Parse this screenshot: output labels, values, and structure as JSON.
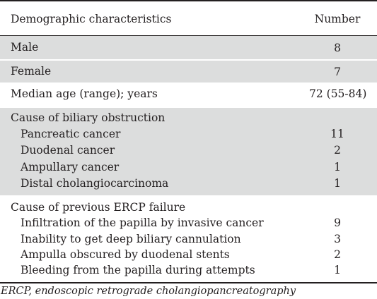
{
  "header": {
    "characteristic": "Demographic characteristics",
    "number": "Number"
  },
  "rows": [
    {
      "label": "Male",
      "value": "8"
    },
    {
      "label": "Female",
      "value": "7"
    },
    {
      "label": "Median age (range); years",
      "value": "72 (55-84)"
    }
  ],
  "biliary": {
    "heading": "Cause of biliary obstruction",
    "items": [
      {
        "label": "Pancreatic cancer",
        "value": "11"
      },
      {
        "label": "Duodenal cancer",
        "value": "2"
      },
      {
        "label": "Ampullary cancer",
        "value": "1"
      },
      {
        "label": "Distal cholangiocarcinoma",
        "value": "1"
      }
    ]
  },
  "ercp": {
    "heading": "Cause of previous ERCP failure",
    "items": [
      {
        "label": "Infiltration of the papilla by invasive cancer",
        "value": "9"
      },
      {
        "label": "Inability to get deep biliary cannulation",
        "value": "3"
      },
      {
        "label": "Ampulla obscured by duodenal stents",
        "value": "2"
      },
      {
        "label": "Bleeding from the papilla during attempts",
        "value": "1"
      }
    ]
  },
  "footnote": "ERCP, endoscopic retrograde cholangiopancreatography",
  "colors": {
    "shade": "#dcdddd",
    "rule": "#231f20",
    "text": "#231f20"
  }
}
